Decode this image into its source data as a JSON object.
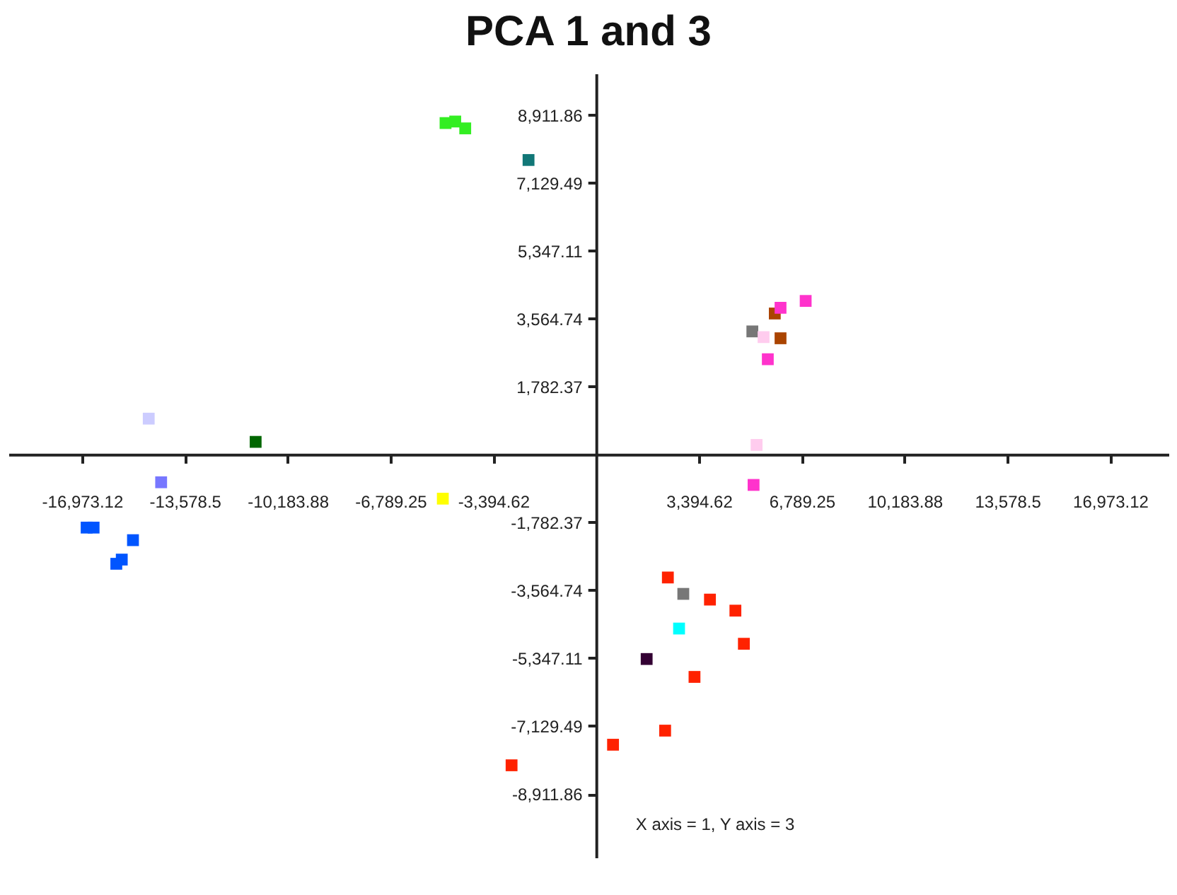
{
  "chart_data": {
    "type": "scatter",
    "title": "PCA 1 and 3",
    "marker": "square",
    "annotations": [
      "X axis = 1, Y axis = 3"
    ],
    "xlim": [
      -19400,
      18900
    ],
    "ylim": [
      -10600,
      10000
    ],
    "xticks": [
      {
        "value": -16973.12,
        "label": "-16,973.12"
      },
      {
        "value": -13578.5,
        "label": "-13,578.5"
      },
      {
        "value": -10183.88,
        "label": "-10,183.88"
      },
      {
        "value": -6789.25,
        "label": "-6,789.25"
      },
      {
        "value": -3394.62,
        "label": "-3,394.62"
      },
      {
        "value": 3394.62,
        "label": "3,394.62"
      },
      {
        "value": 6789.25,
        "label": "6,789.25"
      },
      {
        "value": 10183.88,
        "label": "10,183.88"
      },
      {
        "value": 13578.5,
        "label": "13,578.5"
      },
      {
        "value": 16973.12,
        "label": "16,973.12"
      }
    ],
    "yticks": [
      {
        "value": 8911.86,
        "label": "8,911.86"
      },
      {
        "value": 7129.49,
        "label": "7,129.49"
      },
      {
        "value": 5347.11,
        "label": "5,347.11"
      },
      {
        "value": 3564.74,
        "label": "3,564.74"
      },
      {
        "value": 1782.37,
        "label": "1,782.37"
      },
      {
        "value": -1782.37,
        "label": "-1,782.37"
      },
      {
        "value": -3564.74,
        "label": "-3,564.74"
      },
      {
        "value": -5347.11,
        "label": "-5,347.11"
      },
      {
        "value": -7129.49,
        "label": "-7,129.49"
      },
      {
        "value": -8911.86,
        "label": "-8,911.86"
      }
    ],
    "x": [
      -4970,
      -4650,
      -4320,
      -2230,
      -14770,
      -11240,
      -14360,
      -5060,
      -16820,
      -16590,
      -15290,
      -15660,
      -15840,
      5160,
      5530,
      5900,
      6090,
      6920,
      6090,
      5670,
      5300,
      5200,
      2370,
      2880,
      3760,
      4600,
      2740,
      4880,
      1670,
      3250,
      2280,
      560,
      -2790
    ],
    "values": [
      8700,
      8740,
      8560,
      7730,
      940,
      330,
      -730,
      -1160,
      -1920,
      -1920,
      -2250,
      -2760,
      -2870,
      3230,
      3080,
      3700,
      3850,
      4030,
      3050,
      2500,
      250,
      -800,
      -3230,
      -3660,
      -3810,
      -4100,
      -4570,
      -4970,
      -5370,
      -5840,
      -7250,
      -7620,
      -8160
    ],
    "colors": [
      "#33ee22",
      "#33ee22",
      "#33ee22",
      "#117777",
      "#ccccff",
      "#006600",
      "#7777ff",
      "#ffff00",
      "#0055ff",
      "#0055ff",
      "#0055ff",
      "#0055ff",
      "#0055ff",
      "#777777",
      "#ffccee",
      "#aa4400",
      "#ff33cc",
      "#ff33cc",
      "#aa4400",
      "#ff33cc",
      "#ffccee",
      "#ff33cc",
      "#ff2200",
      "#777777",
      "#ff2200",
      "#ff2200",
      "#00ffff",
      "#ff2200",
      "#330033",
      "#ff2200",
      "#ff2200",
      "#ff2200",
      "#ff2200"
    ]
  }
}
